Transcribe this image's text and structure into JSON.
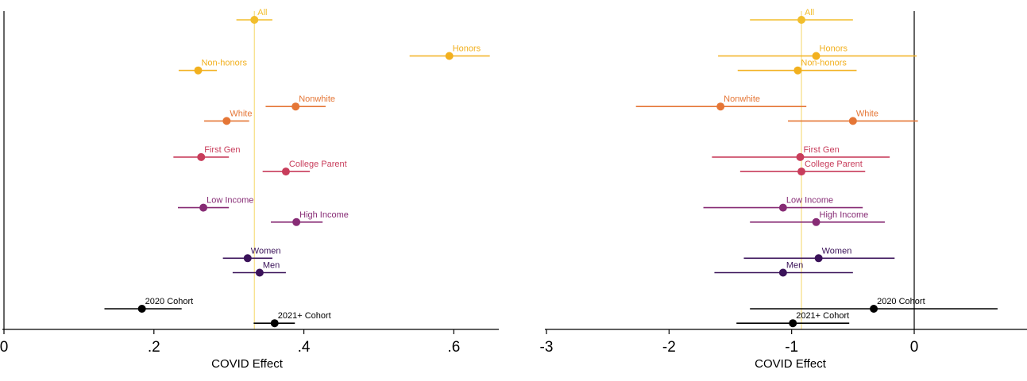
{
  "chart_data": [
    {
      "type": "scatter",
      "subtype": "coefficient-plot-with-confidence-intervals",
      "title": "",
      "xlabel": "COVID Effect",
      "ylabel": "",
      "xlim": [
        0,
        0.66
      ],
      "xticks": [
        0,
        0.2,
        0.4,
        0.6
      ],
      "xtick_labels": [
        "0",
        ".2",
        ".4",
        ".6"
      ],
      "reference_line": {
        "x": 0.334,
        "color": "#f7e08a"
      },
      "grid": false,
      "legend": "none",
      "points": [
        {
          "label": "All",
          "estimate": 0.334,
          "ci": [
            0.31,
            0.358
          ],
          "color": "#f2be2c"
        },
        {
          "label": "Honors",
          "estimate": 0.594,
          "ci": [
            0.541,
            0.648
          ],
          "color": "#f2b01e"
        },
        {
          "label": "Non-honors",
          "estimate": 0.259,
          "ci": [
            0.233,
            0.284
          ],
          "color": "#f2b01e"
        },
        {
          "label": "Nonwhite",
          "estimate": 0.389,
          "ci": [
            0.349,
            0.429
          ],
          "color": "#e57636"
        },
        {
          "label": "White",
          "estimate": 0.297,
          "ci": [
            0.267,
            0.327
          ],
          "color": "#e57636"
        },
        {
          "label": "First Gen",
          "estimate": 0.263,
          "ci": [
            0.226,
            0.3
          ],
          "color": "#c83d5b"
        },
        {
          "label": "College Parent",
          "estimate": 0.376,
          "ci": [
            0.345,
            0.408
          ],
          "color": "#c83d5b"
        },
        {
          "label": "Low Income",
          "estimate": 0.266,
          "ci": [
            0.232,
            0.3
          ],
          "color": "#872c75"
        },
        {
          "label": "High Income",
          "estimate": 0.39,
          "ci": [
            0.356,
            0.425
          ],
          "color": "#872c75"
        },
        {
          "label": "Women",
          "estimate": 0.325,
          "ci": [
            0.292,
            0.358
          ],
          "color": "#3a1259"
        },
        {
          "label": "Men",
          "estimate": 0.341,
          "ci": [
            0.305,
            0.376
          ],
          "color": "#3a1259"
        },
        {
          "label": "2020 Cohort",
          "estimate": 0.184,
          "ci": [
            0.134,
            0.237
          ],
          "color": "#000000"
        },
        {
          "label": "2021+ Cohort",
          "estimate": 0.361,
          "ci": [
            0.333,
            0.388
          ],
          "color": "#000000"
        }
      ]
    },
    {
      "type": "scatter",
      "subtype": "coefficient-plot-with-confidence-intervals",
      "title": "",
      "xlabel": "COVID Effect",
      "ylabel": "",
      "xlim": [
        -3,
        0.92
      ],
      "xticks": [
        -3,
        -2,
        -1,
        0
      ],
      "xtick_labels": [
        "-3",
        "-2",
        "-1",
        "0"
      ],
      "reference_line": {
        "x": -0.92,
        "color": "#f7e08a"
      },
      "zero_line": {
        "x": 0,
        "color": "#000000"
      },
      "grid": false,
      "legend": "none",
      "points": [
        {
          "label": "All",
          "estimate": -0.92,
          "ci": [
            -1.34,
            -0.5
          ],
          "color": "#f2be2c"
        },
        {
          "label": "Honors",
          "estimate": -0.8,
          "ci": [
            -1.6,
            0.02
          ],
          "color": "#f2b01e"
        },
        {
          "label": "Non-honors",
          "estimate": -0.95,
          "ci": [
            -1.44,
            -0.47
          ],
          "color": "#f2b01e"
        },
        {
          "label": "Nonwhite",
          "estimate": -1.58,
          "ci": [
            -2.27,
            -0.88
          ],
          "color": "#e57636"
        },
        {
          "label": "White",
          "estimate": -0.5,
          "ci": [
            -1.03,
            0.03
          ],
          "color": "#e57636"
        },
        {
          "label": "First Gen",
          "estimate": -0.93,
          "ci": [
            -1.65,
            -0.2
          ],
          "color": "#c83d5b"
        },
        {
          "label": "College Parent",
          "estimate": -0.92,
          "ci": [
            -1.42,
            -0.4
          ],
          "color": "#c83d5b"
        },
        {
          "label": "Low Income",
          "estimate": -1.07,
          "ci": [
            -1.72,
            -0.42
          ],
          "color": "#872c75"
        },
        {
          "label": "High Income",
          "estimate": -0.8,
          "ci": [
            -1.34,
            -0.24
          ],
          "color": "#872c75"
        },
        {
          "label": "Women",
          "estimate": -0.78,
          "ci": [
            -1.39,
            -0.16
          ],
          "color": "#3a1259"
        },
        {
          "label": "Men",
          "estimate": -1.07,
          "ci": [
            -1.63,
            -0.5
          ],
          "color": "#3a1259"
        },
        {
          "label": "2020 Cohort",
          "estimate": -0.33,
          "ci": [
            -1.34,
            0.68
          ],
          "color": "#000000"
        },
        {
          "label": "2021+ Cohort",
          "estimate": -0.99,
          "ci": [
            -1.45,
            -0.53
          ],
          "color": "#000000"
        }
      ]
    }
  ]
}
